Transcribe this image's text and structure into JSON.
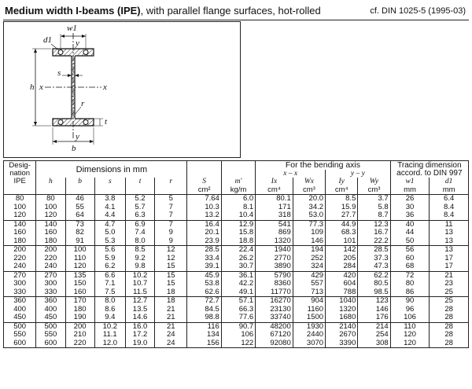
{
  "header": {
    "title_bold": "Medium width I-beams (IPE)",
    "title_rest": ", with parallel flange surfaces, hot-rolled",
    "reference": "cf. DIN 1025-5 (1995-03)"
  },
  "figure": {
    "labels": [
      "w1",
      "d1",
      "y",
      "s",
      "h",
      "x",
      "x",
      "r",
      "y",
      "b",
      "t"
    ]
  },
  "table": {
    "head": {
      "designation": "Desig-nation",
      "dimensions": "Dimensions in mm",
      "bending_axis": "For the bending axis",
      "axis_xx": "x – x",
      "axis_yy": "y – y",
      "tracing": "Tracing dimension accord. to DIN 997",
      "ipe": "IPE",
      "h": "h",
      "b": "b",
      "s": "s",
      "t": "t",
      "r": "r",
      "S": "S",
      "S_unit": "cm²",
      "m": "m'",
      "m_unit": "kg/m",
      "Ix": "Ix",
      "Ix_unit": "cm⁴",
      "Wx": "Wx",
      "Wx_unit": "cm³",
      "Iy": "Iy",
      "Iy_unit": "cm⁴",
      "Wy": "Wy",
      "Wy_unit": "cm³",
      "w1": "w1",
      "w1_unit": "mm",
      "d1": "d1",
      "d1_unit": "mm"
    },
    "rows": [
      [
        "80",
        "80",
        "46",
        "3.8",
        "5.2",
        "5",
        "7.64",
        "6.0",
        "80.1",
        "20.0",
        "8.5",
        "3.7",
        "26",
        "6.4"
      ],
      [
        "100",
        "100",
        "55",
        "4.1",
        "5.7",
        "7",
        "10.3",
        "8.1",
        "171",
        "34.2",
        "15.9",
        "5.8",
        "30",
        "8.4"
      ],
      [
        "120",
        "120",
        "64",
        "4.4",
        "6.3",
        "7",
        "13.2",
        "10.4",
        "318",
        "53.0",
        "27.7",
        "8.7",
        "36",
        "8.4"
      ],
      [
        "140",
        "140",
        "73",
        "4.7",
        "6.9",
        "7",
        "16.4",
        "12.9",
        "541",
        "77.3",
        "44.9",
        "12.3",
        "40",
        "11"
      ],
      [
        "160",
        "160",
        "82",
        "5.0",
        "7.4",
        "9",
        "20.1",
        "15.8",
        "869",
        "109",
        "68.3",
        "16.7",
        "44",
        "13"
      ],
      [
        "180",
        "180",
        "91",
        "5.3",
        "8.0",
        "9",
        "23.9",
        "18.8",
        "1320",
        "146",
        "101",
        "22.2",
        "50",
        "13"
      ],
      [
        "200",
        "200",
        "100",
        "5.6",
        "8.5",
        "12",
        "28.5",
        "22.4",
        "1940",
        "194",
        "142",
        "28.5",
        "56",
        "13"
      ],
      [
        "220",
        "220",
        "110",
        "5.9",
        "9.2",
        "12",
        "33.4",
        "26.2",
        "2770",
        "252",
        "205",
        "37.3",
        "60",
        "17"
      ],
      [
        "240",
        "240",
        "120",
        "6.2",
        "9.8",
        "15",
        "39.1",
        "30.7",
        "3890",
        "324",
        "284",
        "47.3",
        "68",
        "17"
      ],
      [
        "270",
        "270",
        "135",
        "6.6",
        "10.2",
        "15",
        "45.9",
        "36.1",
        "5790",
        "429",
        "420",
        "62.2",
        "72",
        "21"
      ],
      [
        "300",
        "300",
        "150",
        "7.1",
        "10.7",
        "15",
        "53.8",
        "42.2",
        "8360",
        "557",
        "604",
        "80.5",
        "80",
        "23"
      ],
      [
        "330",
        "330",
        "160",
        "7.5",
        "11.5",
        "18",
        "62.6",
        "49.1",
        "11770",
        "713",
        "788",
        "98.5",
        "86",
        "25"
      ],
      [
        "360",
        "360",
        "170",
        "8.0",
        "12.7",
        "18",
        "72.7",
        "57.1",
        "16270",
        "904",
        "1040",
        "123",
        "90",
        "25"
      ],
      [
        "400",
        "400",
        "180",
        "8.6",
        "13.5",
        "21",
        "84.5",
        "66.3",
        "23130",
        "1160",
        "1320",
        "146",
        "96",
        "28"
      ],
      [
        "450",
        "450",
        "190",
        "9.4",
        "14.6",
        "21",
        "98.8",
        "77.6",
        "33740",
        "1500",
        "1680",
        "176",
        "106",
        "28"
      ],
      [
        "500",
        "500",
        "200",
        "10.2",
        "16.0",
        "21",
        "116",
        "90.7",
        "48200",
        "1930",
        "2140",
        "214",
        "110",
        "28"
      ],
      [
        "550",
        "550",
        "210",
        "11.1",
        "17.2",
        "24",
        "134",
        "106",
        "67120",
        "2440",
        "2670",
        "254",
        "120",
        "28"
      ],
      [
        "600",
        "600",
        "220",
        "12.0",
        "19.0",
        "24",
        "156",
        "122",
        "92080",
        "3070",
        "3390",
        "308",
        "120",
        "28"
      ]
    ]
  }
}
